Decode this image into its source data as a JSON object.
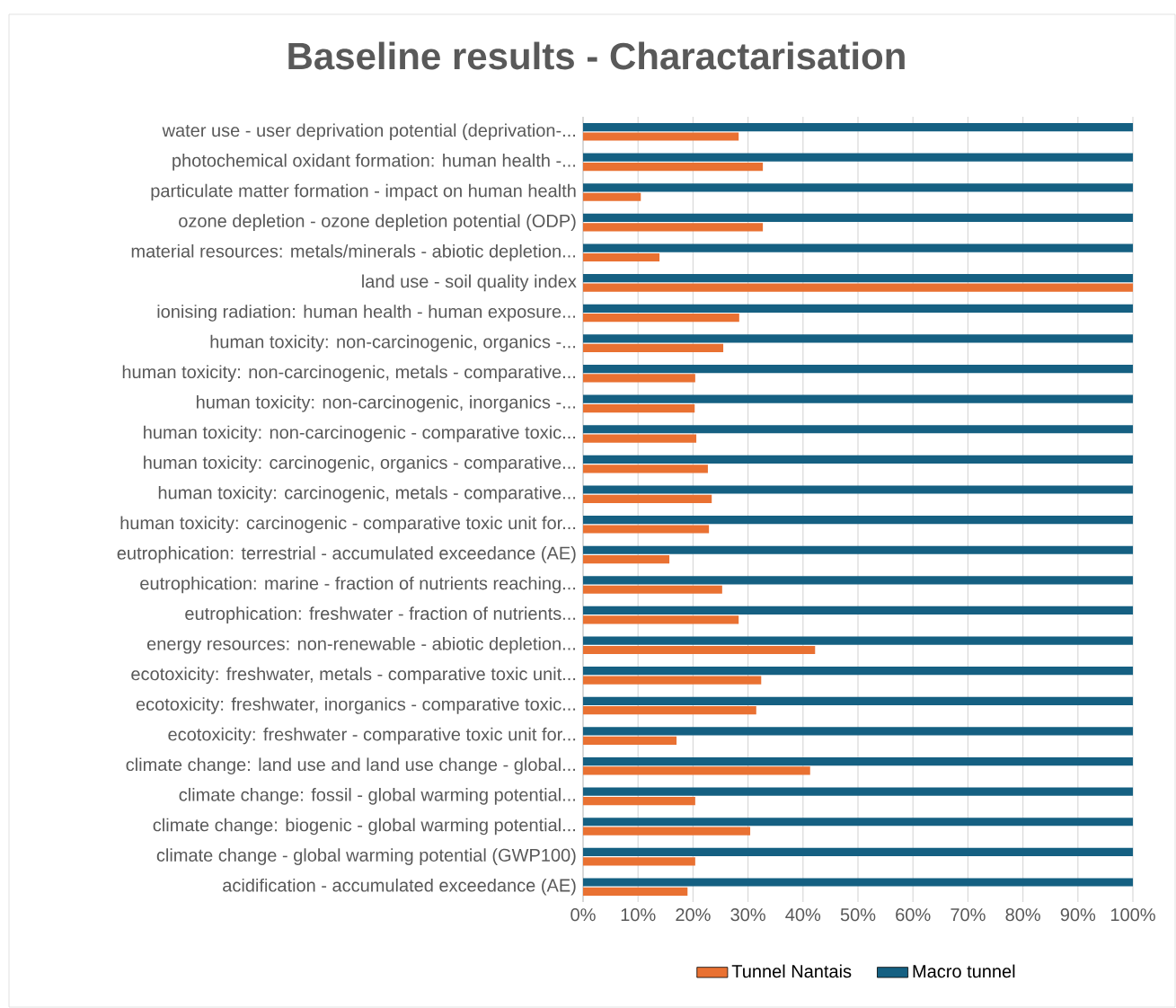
{
  "chart_data": {
    "type": "bar",
    "orientation": "horizontal",
    "title": "Baseline results - Charactarisation",
    "categories": [
      "water use - user deprivation potential (deprivation-...",
      "photochemical oxidant formation: human health -...",
      "particulate matter formation - impact on human health",
      "ozone depletion - ozone depletion potential (ODP)",
      "material resources: metals/minerals - abiotic depletion...",
      "land use - soil quality index",
      "ionising radiation: human health - human exposure...",
      "human toxicity: non-carcinogenic, organics -...",
      "human toxicity: non-carcinogenic, metals - comparative...",
      "human toxicity: non-carcinogenic, inorganics -...",
      "human toxicity: non-carcinogenic - comparative toxic...",
      "human toxicity: carcinogenic, organics - comparative...",
      "human toxicity: carcinogenic, metals - comparative...",
      "human toxicity: carcinogenic - comparative toxic unit for...",
      "eutrophication: terrestrial - accumulated exceedance (AE)",
      "eutrophication: marine - fraction of nutrients reaching...",
      "eutrophication: freshwater - fraction of nutrients...",
      "energy resources: non-renewable - abiotic depletion...",
      "ecotoxicity: freshwater, metals - comparative toxic unit...",
      "ecotoxicity: freshwater, inorganics - comparative toxic...",
      "ecotoxicity: freshwater - comparative toxic unit for...",
      "climate change: land use and land use change - global...",
      "climate change: fossil - global warming potential...",
      "climate change: biogenic - global warming potential...",
      "climate change - global warming potential (GWP100)",
      "acidification - accumulated exceedance (AE)"
    ],
    "series": [
      {
        "name": "Tunnel Nantais",
        "color": "#e97132",
        "values": [
          28.3,
          32.7,
          10.5,
          32.7,
          13.9,
          100,
          28.4,
          25.5,
          20.4,
          20.3,
          20.6,
          22.7,
          23.4,
          22.9,
          15.7,
          25.3,
          28.3,
          42.2,
          32.4,
          31.5,
          17.0,
          41.3,
          20.4,
          30.4,
          20.4,
          19.0
        ]
      },
      {
        "name": "Macro tunnel",
        "color": "#156082",
        "values": [
          100,
          100,
          100,
          100,
          100,
          100,
          100,
          100,
          100,
          100,
          100,
          100,
          100,
          100,
          100,
          100,
          100,
          100,
          100,
          100,
          100,
          100,
          100,
          100,
          100,
          100
        ]
      }
    ],
    "xlim": [
      0,
      100
    ],
    "xticks": [
      {
        "value": 0,
        "label": "0%"
      },
      {
        "value": 10,
        "label": "10%"
      },
      {
        "value": 20,
        "label": "20%"
      },
      {
        "value": 30,
        "label": "30%"
      },
      {
        "value": 40,
        "label": "40%"
      },
      {
        "value": 50,
        "label": "50%"
      },
      {
        "value": 60,
        "label": "60%"
      },
      {
        "value": 70,
        "label": "70%"
      },
      {
        "value": 80,
        "label": "80%"
      },
      {
        "value": 90,
        "label": "90%"
      },
      {
        "value": 100,
        "label": "100%"
      }
    ],
    "grid": "x",
    "legend": "bottom"
  }
}
